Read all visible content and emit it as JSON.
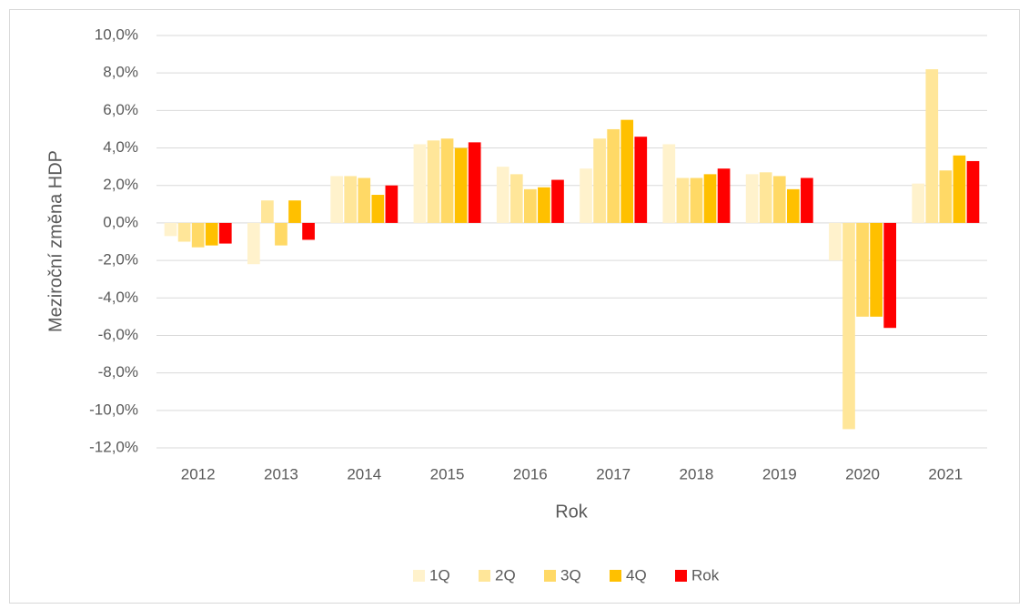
{
  "chart_data": {
    "type": "bar",
    "x_label": "Rok",
    "y_label": "Meziroční změna HDP",
    "categories": [
      "2012",
      "2013",
      "2014",
      "2015",
      "2016",
      "2017",
      "2018",
      "2019",
      "2020",
      "2021"
    ],
    "series": [
      {
        "name": "1Q",
        "color": "#fff2cc",
        "values": [
          -0.7,
          -2.2,
          2.5,
          4.2,
          3.0,
          2.9,
          4.2,
          2.6,
          -2.0,
          2.1
        ]
      },
      {
        "name": "2Q",
        "color": "#ffe699",
        "values": [
          -1.0,
          1.2,
          2.5,
          4.4,
          2.6,
          4.5,
          2.4,
          2.7,
          -11.0,
          8.2
        ]
      },
      {
        "name": "3Q",
        "color": "#ffd966",
        "values": [
          -1.3,
          -1.2,
          2.4,
          4.5,
          1.8,
          5.0,
          2.4,
          2.5,
          -5.0,
          2.8
        ]
      },
      {
        "name": "4Q",
        "color": "#ffc000",
        "values": [
          -1.2,
          1.2,
          1.5,
          4.0,
          1.9,
          5.5,
          2.6,
          1.8,
          -5.0,
          3.6
        ]
      },
      {
        "name": "Rok",
        "color": "#ff0000",
        "values": [
          -1.1,
          -0.9,
          2.0,
          4.3,
          2.3,
          4.6,
          2.9,
          2.4,
          -5.6,
          3.3
        ]
      }
    ],
    "ylim": [
      -12,
      10
    ],
    "yticks": [
      {
        "value": -12,
        "label": "-12,0%"
      },
      {
        "value": -10,
        "label": "-10,0%"
      },
      {
        "value": -8,
        "label": "-8,0%"
      },
      {
        "value": -6,
        "label": "-6,0%"
      },
      {
        "value": -4,
        "label": "-4,0%"
      },
      {
        "value": -2,
        "label": "-2,0%"
      },
      {
        "value": 0,
        "label": "0,0%"
      },
      {
        "value": 2,
        "label": "2,0%"
      },
      {
        "value": 4,
        "label": "4,0%"
      },
      {
        "value": 6,
        "label": "6,0%"
      },
      {
        "value": 8,
        "label": "8,0%"
      },
      {
        "value": 10,
        "label": "10,0%"
      }
    ],
    "grid": true,
    "legend": "bottom"
  }
}
